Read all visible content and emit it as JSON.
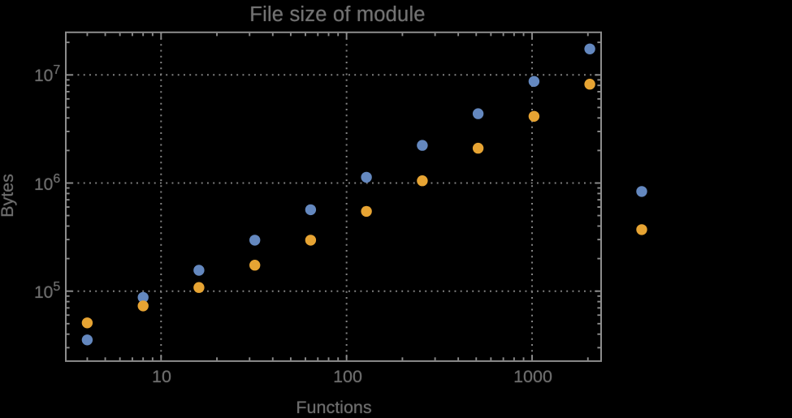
{
  "title": "File size of module",
  "colors": {
    "background": "#000000",
    "frame": "#8c8c8c",
    "gridline": "#828282",
    "tick_label": "#6d6d6d",
    "title": "#727272",
    "axis_label": "#6d6d6d",
    "series_blue": "#6488bf",
    "series_orange": "#e7a433"
  },
  "chart_data": {
    "type": "scatter",
    "title": "File size of module",
    "xlabel": "Functions",
    "ylabel": "Bytes",
    "x_scale": "log",
    "y_scale": "log",
    "grid": true,
    "legend": "none",
    "x_range_shown": [
      3.1,
      2300
    ],
    "y_range_shown": [
      25000,
      25000000
    ],
    "x_gridlines": [
      10,
      100,
      1000
    ],
    "y_gridlines": [
      100000,
      1000000,
      10000000
    ],
    "x_tick_labels": [
      "10",
      "100",
      "1000"
    ],
    "y_tick_labels": [
      {
        "base": "10",
        "exp": "5",
        "value": 100000
      },
      {
        "base": "10",
        "exp": "6",
        "value": 1000000
      },
      {
        "base": "10",
        "exp": "7",
        "value": 10000000
      }
    ],
    "series": [
      {
        "name": "blue",
        "color": "#6488bf",
        "points": [
          [
            4,
            35400
          ],
          [
            8,
            87500
          ],
          [
            16,
            156000
          ],
          [
            32,
            296000
          ],
          [
            64,
            566000
          ],
          [
            128,
            1130000
          ],
          [
            256,
            2230000
          ],
          [
            512,
            4380000
          ],
          [
            1024,
            8710000
          ],
          [
            2048,
            17400000
          ],
          [
            3900,
            835000
          ]
        ]
      },
      {
        "name": "orange",
        "color": "#e7a433",
        "points": [
          [
            4,
            50900
          ],
          [
            8,
            73000
          ],
          [
            16,
            108000
          ],
          [
            32,
            174000
          ],
          [
            64,
            296000
          ],
          [
            128,
            547000
          ],
          [
            256,
            1050000
          ],
          [
            512,
            2100000
          ],
          [
            1024,
            4140000
          ],
          [
            2048,
            8210000
          ],
          [
            3900,
            371000
          ]
        ]
      }
    ]
  }
}
